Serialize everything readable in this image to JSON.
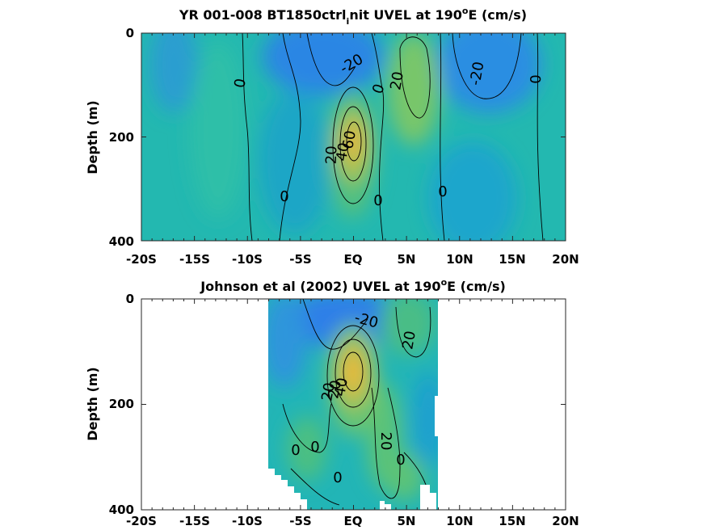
{
  "chart_data": [
    {
      "type": "heatmap",
      "title": "YR 001-008 BT1850ctrl_init UVEL at 190°E (cm/s)",
      "title_parts": {
        "main": "YR 001-008 BT1850ctrl",
        "sub": "i",
        "mid": "nit UVEL at 190",
        "sup": "o",
        "end": "E (cm/s)"
      },
      "xlabel": "",
      "ylabel": "Depth (m)",
      "x_ticks": [
        "-20S",
        "-15S",
        "-10S",
        "-5S",
        "EQ",
        "5N",
        "10N",
        "15N",
        "20N"
      ],
      "x_tick_values": [
        -20,
        -15,
        -10,
        -5,
        0,
        5,
        10,
        15,
        20
      ],
      "y_ticks": [
        "0",
        "200",
        "400"
      ],
      "y_tick_values": [
        0,
        200,
        400
      ],
      "xlim": [
        -20,
        20
      ],
      "ylim": [
        0,
        400
      ],
      "y_reversed": true,
      "contour_labels": [
        "0",
        "-20",
        "0",
        "20",
        "-20",
        "0",
        "0",
        "20",
        "60",
        "40",
        "0",
        "0",
        "0"
      ],
      "features": [
        {
          "lon": 0,
          "depth": 190,
          "value": 80
        },
        {
          "lon": 5.5,
          "depth": 90,
          "value": 28
        },
        {
          "lon": -2,
          "depth": 20,
          "value": -40
        },
        {
          "lon": 11,
          "depth": 30,
          "value": -30
        },
        {
          "lon": 9,
          "depth": 220,
          "value": -8
        },
        {
          "lon": -14,
          "depth": 100,
          "value": 5
        },
        {
          "lon": -8,
          "depth": 80,
          "value": -12
        }
      ]
    },
    {
      "type": "heatmap",
      "title": "Johnson et al (2002) UVEL at 190°E (cm/s)",
      "title_parts": {
        "main": "Johnson et al (2002) UVEL at 190",
        "sup": "o",
        "end": "E (cm/s)"
      },
      "xlabel": "",
      "ylabel": "Depth (m)",
      "x_ticks": [
        "-20S",
        "-15S",
        "-10S",
        "-5S",
        "EQ",
        "5N",
        "10N",
        "15N",
        "20N"
      ],
      "x_tick_values": [
        -20,
        -15,
        -10,
        -5,
        0,
        5,
        10,
        15,
        20
      ],
      "y_ticks": [
        "0",
        "200",
        "400"
      ],
      "y_tick_values": [
        0,
        200,
        400
      ],
      "xlim": [
        -20,
        20
      ],
      "ylim": [
        0,
        400
      ],
      "y_reversed": true,
      "data_lon_range": [
        -8,
        8
      ],
      "contour_labels": [
        "-20",
        "20",
        "20",
        "40",
        "20",
        "0",
        "0",
        "20",
        "0",
        "0",
        "0"
      ],
      "features": [
        {
          "lon": 0,
          "depth": 150,
          "value": 90
        },
        {
          "lon": -1,
          "depth": 30,
          "value": -35
        },
        {
          "lon": 6,
          "depth": 60,
          "value": 25
        },
        {
          "lon": 3,
          "depth": 280,
          "value": 25
        },
        {
          "lon": -5,
          "depth": 290,
          "value": 20
        },
        {
          "lon": 6.5,
          "depth": 330,
          "value": 10
        },
        {
          "lon": 7.5,
          "depth": 200,
          "value": -10
        }
      ]
    }
  ],
  "colors": {
    "background": "#ffffff",
    "colormap": "parula"
  }
}
